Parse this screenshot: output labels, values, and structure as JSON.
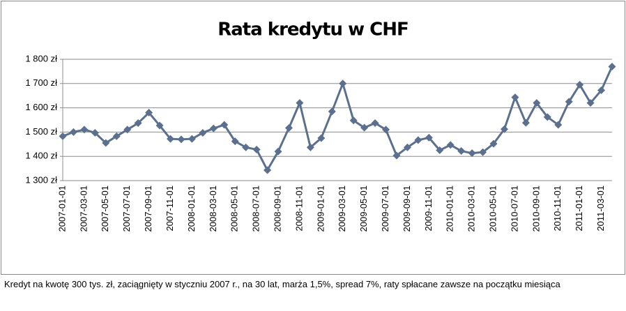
{
  "chart_data": {
    "type": "line",
    "title": "Rata kredytu w CHF",
    "note": "Kredyt na kwotę 300 tys. zł, zaciągnięty w styczniu 2007 r., na 30 lat, marża 1,5%, spread 7%, raty spłacane zawsze na początku miesiąca",
    "categories": [
      "2007-01-01",
      null,
      "2007-03-01",
      null,
      "2007-05-01",
      null,
      "2007-07-01",
      null,
      "2007-09-01",
      null,
      "2007-11-01",
      null,
      "2008-01-01",
      null,
      "2008-03-01",
      null,
      "2008-05-01",
      null,
      "2008-07-01",
      null,
      "2008-09-01",
      null,
      "2008-11-01",
      null,
      "2009-01-01",
      null,
      "2009-03-01",
      null,
      "2009-05-01",
      null,
      "2009-07-01",
      null,
      "2009-09-01",
      null,
      "2009-11-01",
      null,
      "2010-01-01",
      null,
      "2010-03-01",
      null,
      "2010-05-01",
      null,
      "2010-07-01",
      null,
      "2010-09-01",
      null,
      "2010-11-01",
      null,
      "2011-01-01",
      null,
      "2011-03-01",
      null
    ],
    "series": [
      {
        "color": "#5b6f8e",
        "values": [
          1483,
          1500,
          1510,
          1497,
          1455,
          1483,
          1510,
          1537,
          1580,
          1527,
          1472,
          1470,
          1472,
          1497,
          1515,
          1530,
          1462,
          1437,
          1428,
          1343,
          1420,
          1517,
          1620,
          1437,
          1475,
          1585,
          1700,
          1548,
          1518,
          1537,
          1510,
          1403,
          1437,
          1467,
          1477,
          1425,
          1447,
          1422,
          1413,
          1417,
          1452,
          1512,
          1643,
          1538,
          1620,
          1562,
          1530,
          1625,
          1695,
          1620,
          1672,
          1770
        ]
      }
    ],
    "ylim": [
      1300,
      1800
    ],
    "yticks": [
      {
        "value": 1300,
        "label": "1 300 zł"
      },
      {
        "value": 1400,
        "label": "1 400 zł"
      },
      {
        "value": 1500,
        "label": "1 500 zł"
      },
      {
        "value": 1600,
        "label": "1 600 zł"
      },
      {
        "value": 1700,
        "label": "1 700 zł"
      },
      {
        "value": 1800,
        "label": "1 800 zł"
      }
    ],
    "grid": true
  }
}
